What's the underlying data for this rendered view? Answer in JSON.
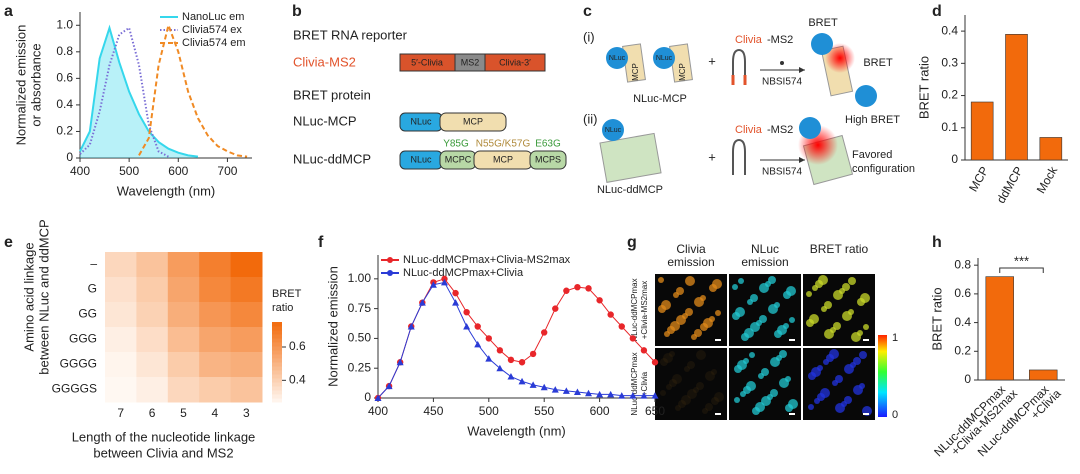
{
  "chart_data": [
    {
      "type": "line",
      "panel": "a",
      "xlabel": "Wavelength (nm)",
      "ylabel": [
        "Normalized emission",
        "or absorbance"
      ],
      "x": [
        400,
        420,
        440,
        460,
        480,
        500,
        520,
        540,
        560,
        580,
        600,
        620,
        640,
        660,
        680,
        700,
        720,
        740
      ],
      "series": [
        {
          "name": "NanoLuc em",
          "color": "#35d7ec",
          "fill": true,
          "dash": "solid",
          "values": [
            0.05,
            0.2,
            0.75,
            0.98,
            0.72,
            0.5,
            0.33,
            0.2,
            0.12,
            0.07,
            0.04,
            0.02,
            0.01,
            null,
            null,
            null,
            null,
            null
          ]
        },
        {
          "name": "Clivia574 ex",
          "color": "#7b6fd6",
          "fill": false,
          "dash": "dotted",
          "values": [
            0.03,
            0.1,
            0.35,
            0.7,
            0.93,
            0.98,
            0.7,
            0.25,
            0.05,
            0.01,
            null,
            null,
            null,
            null,
            null,
            null,
            null,
            null
          ]
        },
        {
          "name": "Clivia574 em",
          "color": "#f08a24",
          "fill": false,
          "dash": "dashed",
          "values": [
            null,
            null,
            null,
            null,
            null,
            null,
            0.02,
            0.15,
            0.7,
            1.0,
            0.8,
            0.5,
            0.3,
            0.17,
            0.09,
            0.05,
            0.02,
            0.01
          ]
        }
      ],
      "xlim": [
        400,
        750
      ],
      "xticks": [
        400,
        500,
        600,
        700
      ],
      "ylim": [
        0,
        1.1
      ],
      "yticks": [
        0,
        0.2,
        0.4,
        0.6,
        0.8,
        {
          "value": 1,
          "label": "1.0"
        }
      ],
      "legend": "upper right"
    },
    {
      "type": "bar",
      "panel": "d",
      "ylabel": "BRET ratio",
      "categories": [
        "MCP",
        "ddMCP",
        "Mock"
      ],
      "values": [
        0.18,
        0.39,
        0.07
      ],
      "color": "#f26a0c",
      "ylim": [
        0,
        0.45
      ],
      "yticks": [
        0,
        0.1,
        0.2,
        0.3,
        0.4
      ],
      "xtick_rotation": 60
    },
    {
      "type": "heatmap",
      "panel": "e",
      "ylabel": [
        "Amino acid linkage",
        "between NLuc and ddMCP"
      ],
      "xlabel": [
        "Length of the nucleotide linkage",
        "between Clivia and MS2"
      ],
      "rows": [
        "–",
        "G",
        "GG",
        "GGG",
        "GGGG",
        "GGGGS"
      ],
      "columns": [
        "7",
        "6",
        "5",
        "4",
        "3"
      ],
      "values": [
        [
          0.38,
          0.45,
          0.58,
          0.68,
          0.75
        ],
        [
          0.35,
          0.42,
          0.55,
          0.65,
          0.7
        ],
        [
          0.33,
          0.4,
          0.52,
          0.6,
          0.65
        ],
        [
          0.3,
          0.36,
          0.47,
          0.55,
          0.58
        ],
        [
          0.28,
          0.33,
          0.42,
          0.5,
          0.52
        ],
        [
          0.27,
          0.3,
          0.38,
          0.42,
          0.45
        ]
      ],
      "colorbar_label": [
        "BRET",
        "ratio"
      ],
      "clim": [
        0.27,
        0.75
      ],
      "cticks": [
        0.4,
        0.6
      ],
      "cmap": [
        "#fff8f2",
        "#f26a0c"
      ]
    },
    {
      "type": "line",
      "panel": "f",
      "xlabel": "Wavelength (nm)",
      "ylabel": [
        "Normalized emission"
      ],
      "x": [
        400,
        410,
        420,
        430,
        440,
        450,
        460,
        470,
        480,
        490,
        500,
        510,
        520,
        530,
        540,
        550,
        560,
        570,
        580,
        590,
        600,
        610,
        620,
        630,
        640,
        650
      ],
      "series": [
        {
          "name": "NLuc-ddMCPmax+Clivia-MS2max",
          "color": "#e8262a",
          "marker": "circle",
          "dash": "solid",
          "values": [
            0,
            0.1,
            0.3,
            0.6,
            0.8,
            0.97,
            1.0,
            0.88,
            0.72,
            0.6,
            0.5,
            0.4,
            0.32,
            0.3,
            0.37,
            0.55,
            0.75,
            0.9,
            0.93,
            0.92,
            0.82,
            0.7,
            0.6,
            0.5,
            0.4,
            0.3
          ]
        },
        {
          "name": "NLuc-ddMCPmax+Clivia",
          "color": "#2a3bd6",
          "marker": "triangle",
          "dash": "solid",
          "values": [
            0,
            0.1,
            0.3,
            0.6,
            0.8,
            0.95,
            0.97,
            0.8,
            0.6,
            0.45,
            0.33,
            0.25,
            0.18,
            0.14,
            0.11,
            0.09,
            0.07,
            0.06,
            0.05,
            0.04,
            0.03,
            0.03,
            0.02,
            0.02,
            0.02,
            0.02
          ]
        }
      ],
      "xlim": [
        400,
        650
      ],
      "xticks": [
        400,
        450,
        500,
        550,
        600,
        650
      ],
      "ylim": [
        0,
        1.2
      ],
      "yticks": [
        0,
        0.25,
        {
          "value": 0.5,
          "label": "0.50"
        },
        0.75,
        {
          "value": 1,
          "label": "1.00"
        }
      ],
      "legend": "upper left"
    },
    {
      "type": "bar",
      "panel": "h",
      "ylabel": "BRET ratio",
      "categories": [
        [
          "NLuc-ddMCPmax",
          "+Clivia-MS2max"
        ],
        [
          "NLuc-ddMCPmax",
          "+Clivia"
        ]
      ],
      "values": [
        0.72,
        0.07
      ],
      "color": "#f26a0c",
      "ylim": [
        0,
        0.85
      ],
      "yticks": [
        0,
        0.2,
        0.4,
        0.6,
        0.8
      ],
      "xtick_rotation": 45,
      "annotation": "***"
    }
  ],
  "diagram_b": {
    "panel": "b",
    "reporter_title": "BRET RNA reporter",
    "reporter": "Clivia-MS2",
    "reporter_parts": [
      "5′-Clivia",
      "MS2",
      "Clivia-3′"
    ],
    "protein_title": "BRET protein",
    "protein_1": "NLuc-MCP",
    "protein_1_parts": [
      "NLuc",
      "MCP"
    ],
    "protein_2": "NLuc-ddMCP",
    "protein_2_parts": [
      "NLuc",
      "MCPC",
      "MCP",
      "MCPS"
    ],
    "mutations": [
      "Y85G",
      "N55G/K57G",
      "E63G"
    ]
  },
  "diagram_c": {
    "panel": "c",
    "step_1": "(i)",
    "step_2": "(ii)",
    "nluc": "NLuc",
    "mcp": "MCP",
    "plus": "+",
    "clivia": "Clivia",
    "ms2": "-MS2",
    "substrate": "NBSI574",
    "bret": "BRET",
    "construct_1": "NLuc-MCP",
    "construct_2": "NLuc-ddMCP",
    "high_bret": "High BRET",
    "favored": [
      "Favored",
      "configuration"
    ]
  },
  "images_g": {
    "panel": "g",
    "columns": [
      [
        "Clivia",
        "emission"
      ],
      [
        "NLuc",
        "emission"
      ],
      [
        "BRET ratio"
      ]
    ],
    "rows": [
      [
        "NLuc-ddMCPmax",
        "+Clivia-MS2max"
      ],
      [
        "NLuc-ddMCPmax",
        "+Clivia"
      ]
    ],
    "colorbar": [
      "1",
      "0"
    ]
  }
}
